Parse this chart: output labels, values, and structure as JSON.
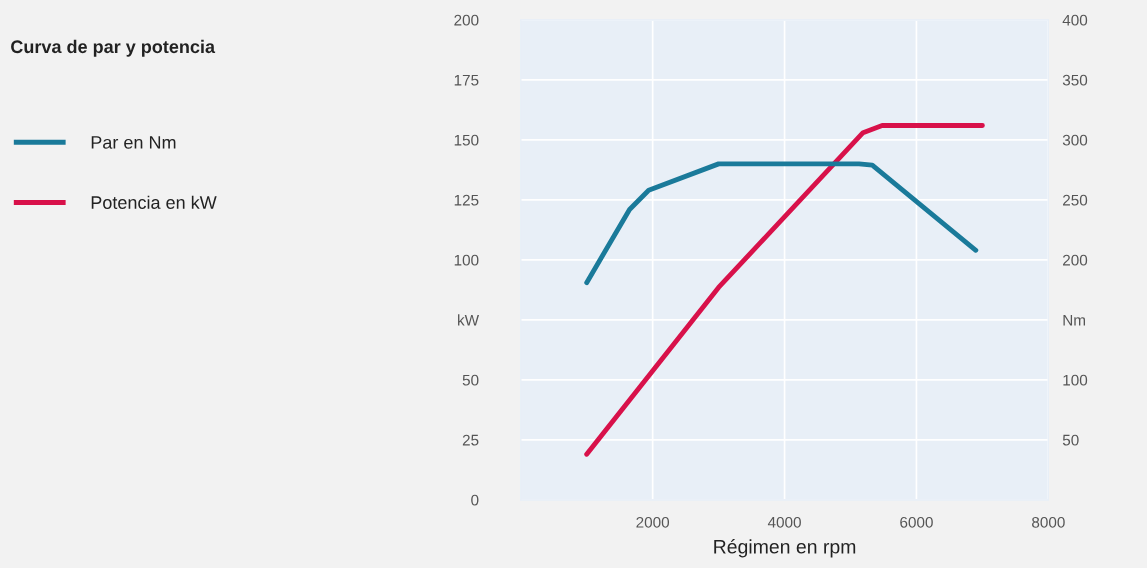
{
  "chart_data": {
    "type": "line",
    "title": "Curva de par y potencia",
    "xlabel": "Régimen en rpm",
    "xlim": [
      0,
      8000
    ],
    "xticks": [
      2000,
      4000,
      6000,
      8000
    ],
    "ylim": [
      0,
      200
    ],
    "yticks": [
      0,
      25,
      50,
      {
        "value": 75,
        "label": "kW"
      },
      100,
      125,
      150,
      175,
      200
    ],
    "y2lim": [
      0,
      400
    ],
    "y2ticks": [
      50,
      100,
      {
        "value": 150,
        "label": "Nm"
      },
      200,
      250,
      300,
      350,
      400
    ],
    "grid": true,
    "legend": "left",
    "line_style": "solid",
    "marker": "none",
    "series": [
      {
        "name": "Par en Nm",
        "color": "#1a7a9a",
        "axis": "y2",
        "x": [
          1000,
          1650,
          1940,
          3000,
          5130,
          5330,
          6900
        ],
        "values": [
          181,
          242,
          258,
          280,
          280,
          279,
          208
        ]
      },
      {
        "name": "Potencia en kW",
        "color": "#d8114a",
        "x": [
          1000,
          3000,
          5190,
          5480,
          7000
        ],
        "values": [
          19,
          88.5,
          153,
          156,
          156
        ]
      }
    ]
  }
}
